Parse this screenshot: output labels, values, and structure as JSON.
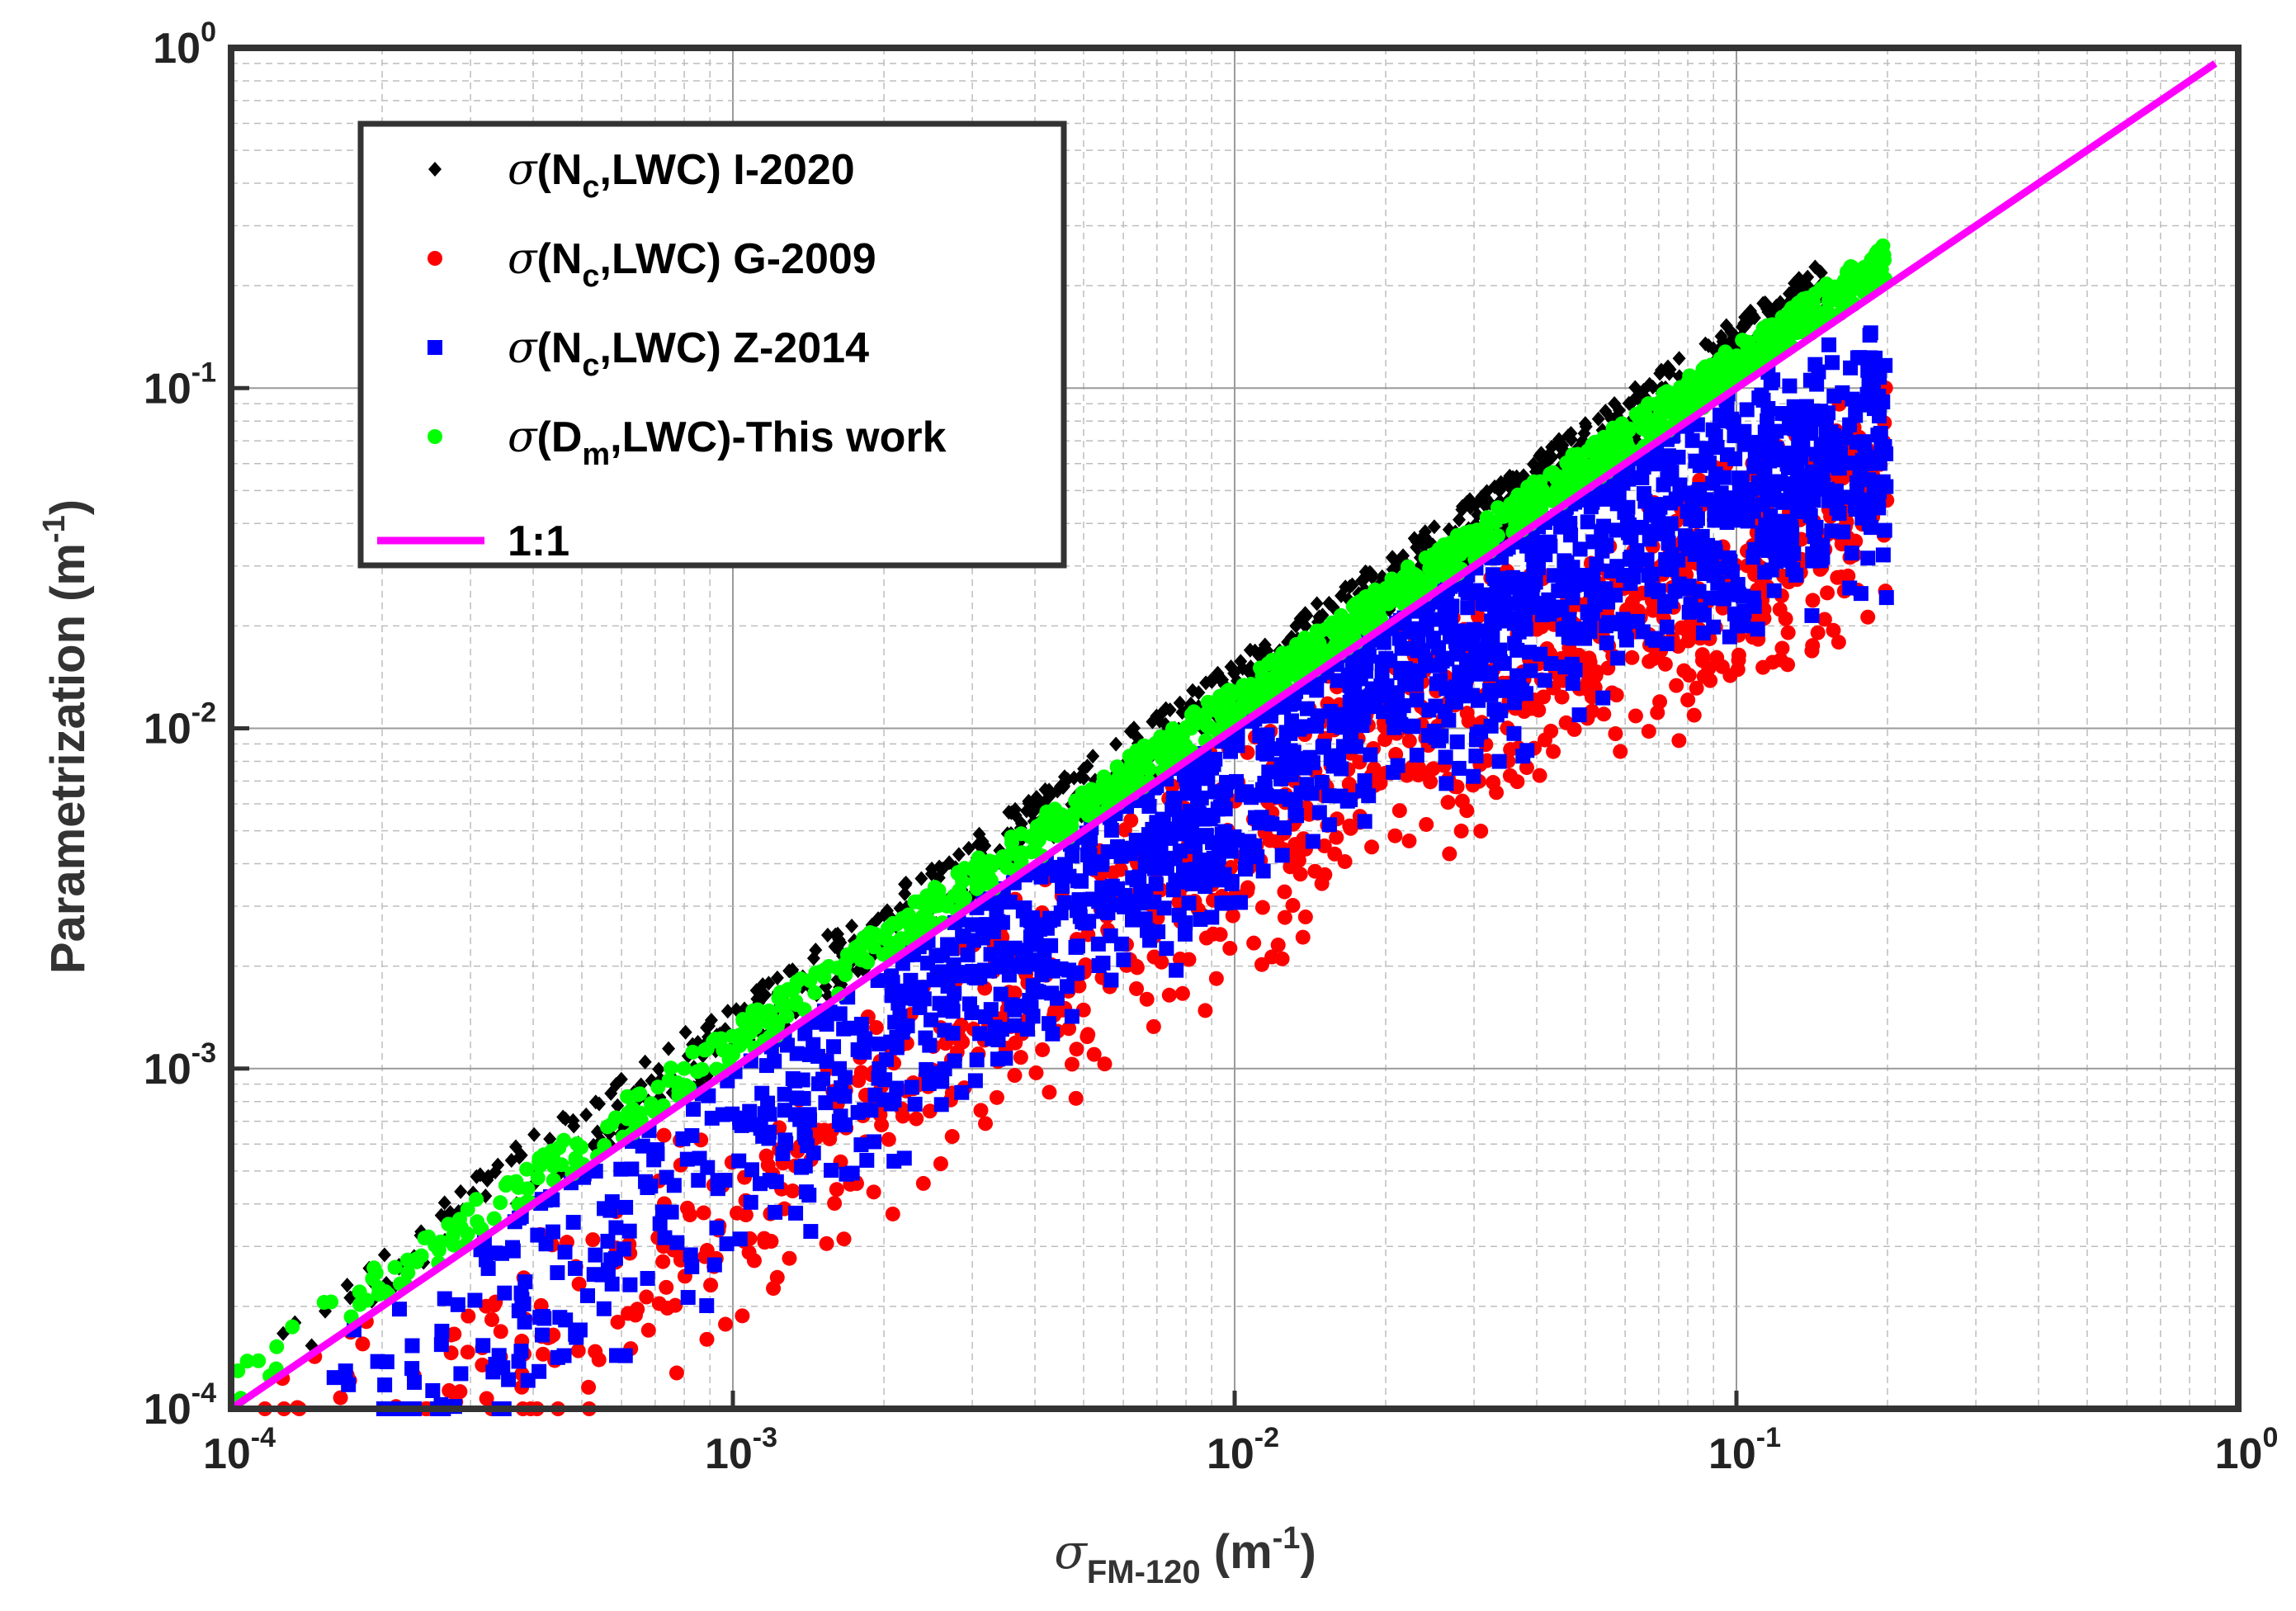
{
  "chart_data": {
    "type": "scatter",
    "xscale": "log",
    "yscale": "log",
    "xlim": [
      0.0001,
      1
    ],
    "ylim": [
      0.0001,
      1
    ],
    "grid": true,
    "xlabel": {
      "symbol": "σ",
      "sub": "FM-120",
      "unit": " (m",
      "unit_exp": "-1",
      "unit_close": ")"
    },
    "ylabel": {
      "text": "Parametrization (m",
      "exp": "-1",
      "close": ")"
    },
    "xticks": [
      {
        "base": "10",
        "exp": "-4",
        "value": 0.0001
      },
      {
        "base": "10",
        "exp": "-3",
        "value": 0.001
      },
      {
        "base": "10",
        "exp": "-2",
        "value": 0.01
      },
      {
        "base": "10",
        "exp": "-1",
        "value": 0.1
      },
      {
        "base": "10",
        "exp": "0",
        "value": 1
      }
    ],
    "yticks": [
      {
        "base": "10",
        "exp": "-4",
        "value": 0.0001
      },
      {
        "base": "10",
        "exp": "-3",
        "value": 0.001
      },
      {
        "base": "10",
        "exp": "-2",
        "value": 0.01
      },
      {
        "base": "10",
        "exp": "-1",
        "value": 0.1
      },
      {
        "base": "10",
        "exp": "0",
        "value": 1
      }
    ],
    "legend_position": "top-left",
    "series": [
      {
        "name": "I-2020",
        "label_symbol": "σ",
        "label_pre": "(N",
        "label_sub": "c",
        "label_post": ",LWC) I-2020",
        "color": "#000000",
        "marker": "diamond",
        "x_range": [
          0.0001,
          0.15
        ],
        "ratio_upper": 1.6,
        "ratio_lower": 1.05
      },
      {
        "name": "G-2009",
        "label_symbol": "σ",
        "label_pre": "(N",
        "label_sub": "c",
        "label_post": ",LWC) G-2009",
        "color": "#ff0000",
        "marker": "circle",
        "x_range": [
          0.0001,
          0.2
        ],
        "points": [
          [
            0.0002,
            0.0001
          ],
          [
            0.0003,
            0.00012
          ],
          [
            0.0005,
            0.0002
          ],
          [
            0.001,
            0.0004
          ],
          [
            0.002,
            0.0008
          ],
          [
            0.005,
            0.0022
          ],
          [
            0.01,
            0.0045
          ],
          [
            0.02,
            0.0085
          ],
          [
            0.05,
            0.018
          ],
          [
            0.1,
            0.03
          ],
          [
            0.2,
            0.05
          ]
        ]
      },
      {
        "name": "Z-2014",
        "label_symbol": "σ",
        "label_pre": "(N",
        "label_sub": "c",
        "label_post": ",LWC) Z-2014",
        "color": "#0000ff",
        "marker": "square",
        "x_range": [
          0.00015,
          0.2
        ],
        "points": [
          [
            0.0002,
            0.0001
          ],
          [
            0.0003,
            0.00015
          ],
          [
            0.0005,
            0.0003
          ],
          [
            0.001,
            0.0006
          ],
          [
            0.002,
            0.0013
          ],
          [
            0.005,
            0.0035
          ],
          [
            0.01,
            0.007
          ],
          [
            0.02,
            0.014
          ],
          [
            0.05,
            0.03
          ],
          [
            0.1,
            0.05
          ],
          [
            0.2,
            0.072
          ]
        ]
      },
      {
        "name": "This work",
        "label_symbol": "σ",
        "label_pre": "(D",
        "label_sub": "m",
        "label_post": ",LWC)-This work",
        "color": "#00ff00",
        "marker": "circle",
        "x_range": [
          0.0001,
          0.2
        ],
        "ratio_upper": 1.35,
        "ratio_lower": 1.02
      },
      {
        "name": "1:1",
        "label_symbol": "",
        "label_pre": "1:1",
        "label_sub": "",
        "label_post": "",
        "color": "#ff00ff",
        "marker": "line",
        "x": [
          0.0001,
          0.9
        ],
        "y": [
          0.0001,
          0.9
        ]
      }
    ]
  }
}
